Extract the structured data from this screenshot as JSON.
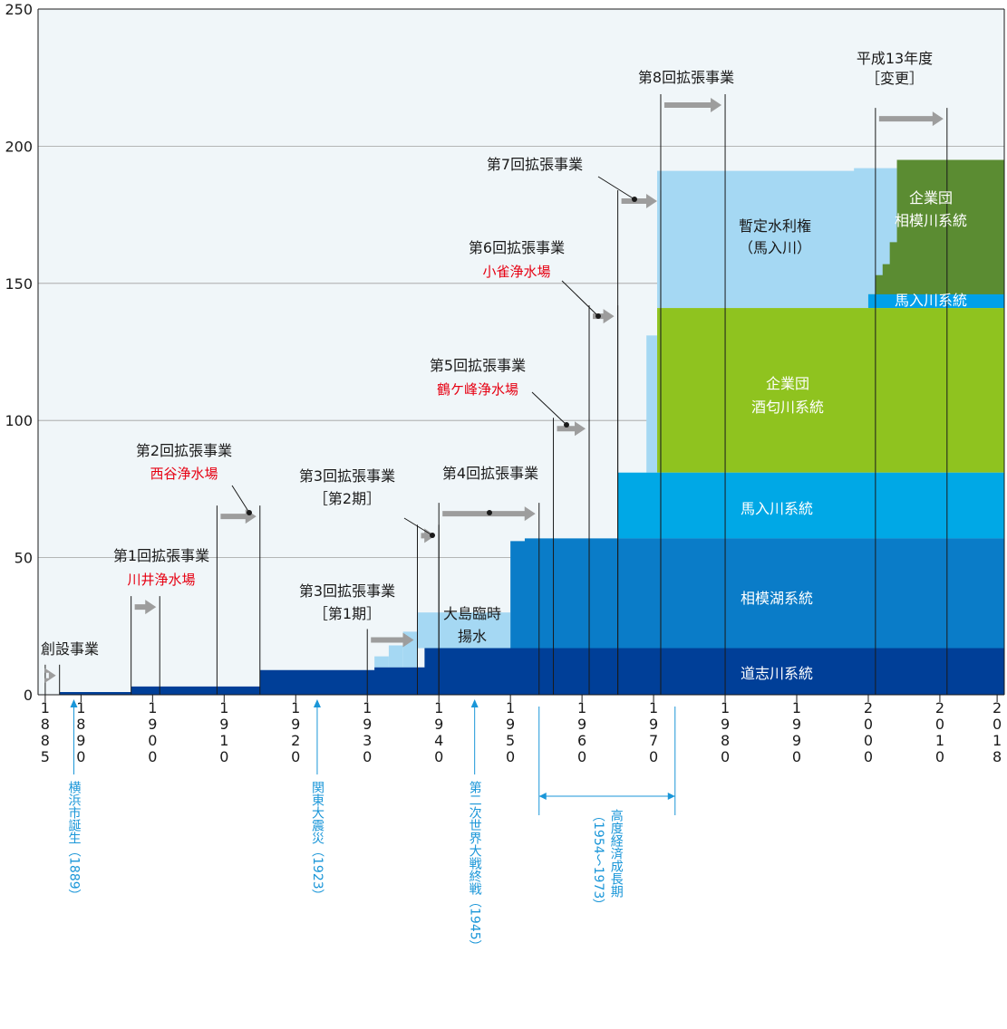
{
  "chart_data": {
    "type": "area",
    "ylim": [
      0,
      250
    ],
    "xlim": [
      1884,
      2019
    ],
    "y_ticks": [
      "0",
      "50",
      "100",
      "150",
      "200",
      "250"
    ],
    "x_ticks": [
      {
        "year": 1885,
        "label": "1885"
      },
      {
        "year": 1890,
        "label": "1890"
      },
      {
        "year": 1900,
        "label": "1900"
      },
      {
        "year": 1910,
        "label": "1910"
      },
      {
        "year": 1920,
        "label": "1920"
      },
      {
        "year": 1930,
        "label": "1930"
      },
      {
        "year": 1940,
        "label": "1940"
      },
      {
        "year": 1950,
        "label": "1950"
      },
      {
        "year": 1960,
        "label": "1960"
      },
      {
        "year": 1970,
        "label": "1970"
      },
      {
        "year": 1980,
        "label": "1980"
      },
      {
        "year": 1990,
        "label": "1990"
      },
      {
        "year": 2000,
        "label": "2000"
      },
      {
        "year": 2010,
        "label": "2010"
      },
      {
        "year": 2018,
        "label": "2018"
      }
    ],
    "colors": {
      "doshi": "#003f98",
      "sagamiko": "#0a7cc8",
      "banyu": "#00a8e6",
      "sakawa": "#8fc31f",
      "banyu_upper": "#00a0e9",
      "sagamigawa": "#5b8c32",
      "zantei": "#a5d8f3",
      "background": "#f0f6f9",
      "arrow": "#9d9d9d",
      "event": "#1a96d8",
      "sub": "#e60012"
    },
    "series": [
      {
        "name": "道志川系統",
        "color": "doshi",
        "steps": [
          [
            1887,
            1
          ],
          [
            1897,
            3
          ],
          [
            1915,
            9
          ],
          [
            1931,
            10
          ],
          [
            1938,
            17
          ],
          [
            2019,
            17
          ]
        ]
      },
      {
        "name": "相模湖系統",
        "color": "sagamiko",
        "band": [
          17,
          56
        ],
        "steps": [
          [
            1950,
            56
          ],
          [
            1952,
            57
          ],
          [
            2019,
            57
          ]
        ]
      },
      {
        "name": "馬入川系統",
        "color": "banyu",
        "band": [
          57,
          81
        ],
        "steps": [
          [
            1965,
            81
          ],
          [
            2019,
            81
          ]
        ]
      },
      {
        "name": "企業団酒匂川系統",
        "color": "sakawa",
        "band": [
          81,
          141
        ],
        "steps": [
          [
            1970.5,
            141
          ],
          [
            2019,
            141
          ]
        ]
      },
      {
        "name": "馬入川系統",
        "color": "banyu_upper",
        "band": [
          141,
          146
        ],
        "steps": [
          [
            2000,
            146
          ],
          [
            2019,
            146
          ]
        ]
      },
      {
        "name": "企業団相模川系統",
        "color": "sagamigawa",
        "steps": [
          [
            2000,
            146
          ],
          [
            2001,
            153
          ],
          [
            2002,
            157
          ],
          [
            2003,
            165
          ],
          [
            2004,
            195
          ],
          [
            2019,
            195
          ]
        ]
      },
      {
        "name": "暫定水利権（馬入川）",
        "color": "zantei",
        "steps": [
          [
            1970.5,
            191
          ],
          [
            1992,
            191
          ],
          [
            1998,
            192
          ],
          [
            2004,
            193
          ]
        ]
      }
    ],
    "extra_light_blocks": [
      {
        "x": [
          1931,
          1933
        ],
        "y": [
          10,
          14
        ]
      },
      {
        "x": [
          1933,
          1935
        ],
        "y": [
          10,
          18
        ]
      },
      {
        "x": [
          1935,
          1937
        ],
        "y": [
          10,
          23
        ]
      },
      {
        "x": [
          1937,
          1950
        ],
        "y": [
          17,
          30
        ]
      },
      {
        "x": [
          1969,
          1970.5
        ],
        "y": [
          81,
          131
        ]
      }
    ],
    "projects": [
      {
        "label": "創設事業",
        "sub": "",
        "start": 1885,
        "end": 1887,
        "y": 7
      },
      {
        "label": "第1回拡張事業",
        "sub": "川井浄水場",
        "start": 1897,
        "end": 1901,
        "y": 32
      },
      {
        "label": "第2回拡張事業",
        "sub": "西谷浄水場",
        "start": 1909,
        "end": 1915,
        "y": 65
      },
      {
        "label": "第3回拡張事業",
        "label2": "［第1期］",
        "start": 1930,
        "end": 1937,
        "y": 20
      },
      {
        "label": "第3回拡張事業",
        "label2": "［第2期］",
        "start": 1937,
        "end": 1940,
        "y": 58
      },
      {
        "label": "第4回拡張事業",
        "sub": "",
        "start": 1940,
        "end": 1954,
        "y": 66
      },
      {
        "label": "第5回拡張事業",
        "sub": "鶴ケ峰浄水場",
        "start": 1956,
        "end": 1961,
        "y": 97
      },
      {
        "label": "第6回拡張事業",
        "sub": "小雀浄水場",
        "start": 1961,
        "end": 1965,
        "y": 138
      },
      {
        "label": "第7回拡張事業",
        "sub": "",
        "start": 1965,
        "end": 1971,
        "y": 180
      },
      {
        "label": "第8回拡張事業",
        "sub": "",
        "start": 1971,
        "end": 1980,
        "y": 215
      },
      {
        "label": "平成13年度",
        "label2": "［変更］",
        "start": 2001,
        "end": 2011,
        "y": 210
      }
    ],
    "region_labels": {
      "doshi": "道志川系統",
      "sagamiko": "相模湖系統",
      "banyu": "馬入川系統",
      "sakawa_1": "企業団",
      "sakawa_2": "酒匂川系統",
      "banyu_upper": "馬入川系統",
      "sagamigawa_1": "企業団",
      "sagamigawa_2": "相模川系統",
      "zantei_1": "暫定水利権",
      "zantei_2": "（馬入川）",
      "oshima_1": "大島臨時",
      "oshima_2": "揚水"
    },
    "events": [
      {
        "year": 1889,
        "label": "横浜市誕生（1889）"
      },
      {
        "year": 1923,
        "label": "関東大震災（1923）"
      },
      {
        "year": 1945,
        "label": "第二次世界大戦終戦（1945）"
      }
    ],
    "period": {
      "start": 1954,
      "end": 1973,
      "label_1": "高度経済成長期",
      "label_2": "（1954〜1973）"
    }
  }
}
